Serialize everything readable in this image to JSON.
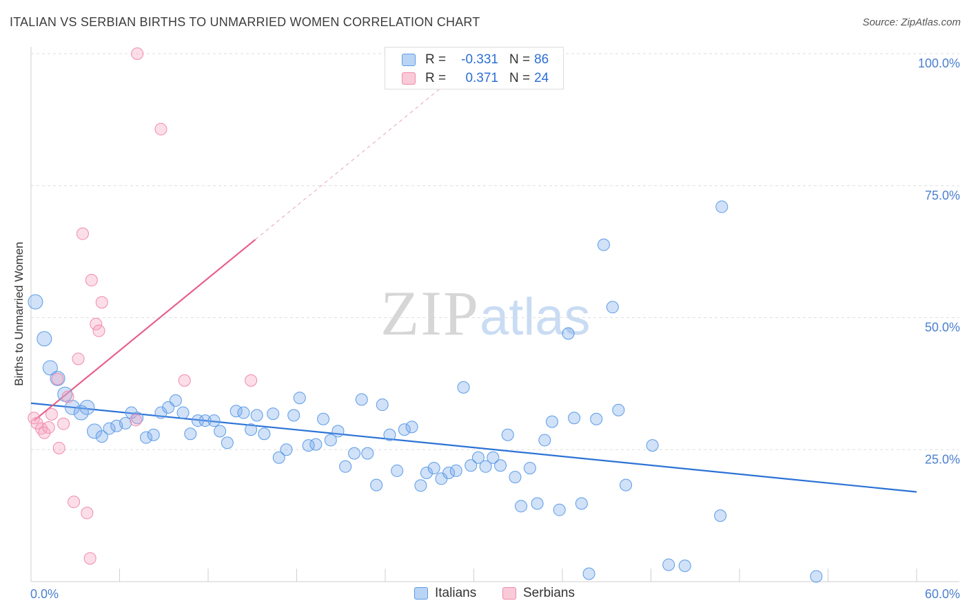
{
  "title": "ITALIAN VS SERBIAN BIRTHS TO UNMARRIED WOMEN CORRELATION CHART",
  "source": "Source: ZipAtlas.com",
  "watermark": {
    "zip": "ZIP",
    "atlas": "atlas"
  },
  "legend": {
    "italians": {
      "r_label": "R =",
      "r": "-0.331",
      "n_label": "N =",
      "n": "86"
    },
    "serbians": {
      "r_label": "R =",
      "r": "0.371",
      "n_label": "N =",
      "n": "24"
    }
  },
  "colors": {
    "italians": "#5b9be6",
    "serbians": "#f08aaa",
    "italians_line": "#2a72d6",
    "serbians_line": "#e8608a",
    "tick": "#4a7fd0"
  },
  "chart_data": {
    "type": "scatter",
    "title": "ITALIAN VS SERBIAN BIRTHS TO UNMARRIED WOMEN CORRELATION CHART",
    "xlabel": "",
    "ylabel": "Births to Unmarried Women",
    "xlim": [
      0,
      60
    ],
    "ylim": [
      0,
      100
    ],
    "x_tick_labels": [
      "0.0%",
      "60.0%"
    ],
    "y_ticks": [
      25,
      50,
      75,
      100
    ],
    "y_tick_labels": [
      "25.0%",
      "50.0%",
      "75.0%",
      "100.0%"
    ],
    "grid": true,
    "legend_position": "top-center",
    "series": [
      {
        "name": "Italians",
        "color": "#5b9be6",
        "trend": {
          "x": [
            0,
            60
          ],
          "y": [
            33.8,
            17.0
          ]
        },
        "points": [
          {
            "x": 0.3,
            "y": 53
          },
          {
            "x": 0.9,
            "y": 46
          },
          {
            "x": 1.3,
            "y": 40.5
          },
          {
            "x": 1.8,
            "y": 38.5
          },
          {
            "x": 2.3,
            "y": 35.5
          },
          {
            "x": 2.8,
            "y": 33
          },
          {
            "x": 3.4,
            "y": 32
          },
          {
            "x": 3.8,
            "y": 33
          },
          {
            "x": 4.3,
            "y": 28.5
          },
          {
            "x": 4.8,
            "y": 27.5
          },
          {
            "x": 5.3,
            "y": 29
          },
          {
            "x": 5.8,
            "y": 29.5
          },
          {
            "x": 6.4,
            "y": 30
          },
          {
            "x": 6.8,
            "y": 32
          },
          {
            "x": 7.2,
            "y": 31
          },
          {
            "x": 7.8,
            "y": 27.3
          },
          {
            "x": 8.3,
            "y": 27.8
          },
          {
            "x": 8.8,
            "y": 32
          },
          {
            "x": 9.3,
            "y": 33
          },
          {
            "x": 9.8,
            "y": 34.3
          },
          {
            "x": 10.3,
            "y": 32
          },
          {
            "x": 10.8,
            "y": 28
          },
          {
            "x": 11.3,
            "y": 30.5
          },
          {
            "x": 11.8,
            "y": 30.5
          },
          {
            "x": 12.4,
            "y": 30.5
          },
          {
            "x": 12.8,
            "y": 28.5
          },
          {
            "x": 13.3,
            "y": 26.3
          },
          {
            "x": 13.9,
            "y": 32.3
          },
          {
            "x": 14.4,
            "y": 32
          },
          {
            "x": 14.9,
            "y": 28.8
          },
          {
            "x": 15.3,
            "y": 31.5
          },
          {
            "x": 15.8,
            "y": 28
          },
          {
            "x": 16.4,
            "y": 31.8
          },
          {
            "x": 16.8,
            "y": 23.5
          },
          {
            "x": 17.3,
            "y": 25
          },
          {
            "x": 17.8,
            "y": 31.5
          },
          {
            "x": 18.2,
            "y": 34.8
          },
          {
            "x": 18.8,
            "y": 25.8
          },
          {
            "x": 19.3,
            "y": 26
          },
          {
            "x": 19.8,
            "y": 30.8
          },
          {
            "x": 20.3,
            "y": 26.8
          },
          {
            "x": 20.8,
            "y": 28.5
          },
          {
            "x": 21.3,
            "y": 21.8
          },
          {
            "x": 21.9,
            "y": 24.3
          },
          {
            "x": 22.4,
            "y": 34.5
          },
          {
            "x": 22.8,
            "y": 24.3
          },
          {
            "x": 23.4,
            "y": 18.3
          },
          {
            "x": 23.8,
            "y": 33.5
          },
          {
            "x": 24.3,
            "y": 27.8
          },
          {
            "x": 24.8,
            "y": 21
          },
          {
            "x": 25.3,
            "y": 28.8
          },
          {
            "x": 25.8,
            "y": 29.3
          },
          {
            "x": 26.4,
            "y": 18.2
          },
          {
            "x": 26.8,
            "y": 20.6
          },
          {
            "x": 27.3,
            "y": 21.5
          },
          {
            "x": 27.8,
            "y": 19.5
          },
          {
            "x": 28.3,
            "y": 20.6
          },
          {
            "x": 28.8,
            "y": 21
          },
          {
            "x": 29.3,
            "y": 36.8
          },
          {
            "x": 29.8,
            "y": 22
          },
          {
            "x": 30.3,
            "y": 23.5
          },
          {
            "x": 30.8,
            "y": 21.8
          },
          {
            "x": 31.3,
            "y": 23.5
          },
          {
            "x": 31.8,
            "y": 22
          },
          {
            "x": 32.3,
            "y": 27.8
          },
          {
            "x": 32.8,
            "y": 19.8
          },
          {
            "x": 33.2,
            "y": 14.3
          },
          {
            "x": 33.8,
            "y": 21.5
          },
          {
            "x": 34.3,
            "y": 14.8
          },
          {
            "x": 34.8,
            "y": 26.8
          },
          {
            "x": 35.3,
            "y": 30.3
          },
          {
            "x": 35.8,
            "y": 13.6
          },
          {
            "x": 36.4,
            "y": 47
          },
          {
            "x": 36.8,
            "y": 31
          },
          {
            "x": 37.3,
            "y": 14.8
          },
          {
            "x": 37.8,
            "y": 1.5
          },
          {
            "x": 38.3,
            "y": 30.8
          },
          {
            "x": 38.8,
            "y": 63.8
          },
          {
            "x": 39.4,
            "y": 52
          },
          {
            "x": 39.8,
            "y": 32.5
          },
          {
            "x": 40.3,
            "y": 18.3
          },
          {
            "x": 42.1,
            "y": 25.8
          },
          {
            "x": 43.2,
            "y": 3.2
          },
          {
            "x": 44.3,
            "y": 3
          },
          {
            "x": 46.7,
            "y": 12.5
          },
          {
            "x": 46.8,
            "y": 71
          },
          {
            "x": 53.2,
            "y": 1
          }
        ]
      },
      {
        "name": "Serbians",
        "color": "#f08aaa",
        "trend": {
          "x": [
            0.2,
            15.2
          ],
          "y": [
            30.5,
            64.8
          ]
        },
        "trend_extension": {
          "x": [
            15.2,
            28.2
          ],
          "y": [
            64.8,
            94.5
          ]
        },
        "points": [
          {
            "x": 0.2,
            "y": 31
          },
          {
            "x": 0.4,
            "y": 30
          },
          {
            "x": 0.7,
            "y": 29
          },
          {
            "x": 0.9,
            "y": 28.2
          },
          {
            "x": 1.2,
            "y": 29.2
          },
          {
            "x": 1.4,
            "y": 31.7
          },
          {
            "x": 1.9,
            "y": 25.3
          },
          {
            "x": 2.2,
            "y": 29.9
          },
          {
            "x": 1.8,
            "y": 38.4
          },
          {
            "x": 2.5,
            "y": 35
          },
          {
            "x": 2.9,
            "y": 15.1
          },
          {
            "x": 3.2,
            "y": 42.2
          },
          {
            "x": 3.5,
            "y": 65.9
          },
          {
            "x": 3.8,
            "y": 13
          },
          {
            "x": 4.0,
            "y": 4.4
          },
          {
            "x": 4.1,
            "y": 57.1
          },
          {
            "x": 4.4,
            "y": 48.8
          },
          {
            "x": 4.6,
            "y": 47.5
          },
          {
            "x": 4.8,
            "y": 52.9
          },
          {
            "x": 7.1,
            "y": 30.6
          },
          {
            "x": 7.2,
            "y": 100
          },
          {
            "x": 8.8,
            "y": 85.7
          },
          {
            "x": 10.4,
            "y": 38.1
          },
          {
            "x": 14.9,
            "y": 38.1
          }
        ]
      }
    ]
  }
}
